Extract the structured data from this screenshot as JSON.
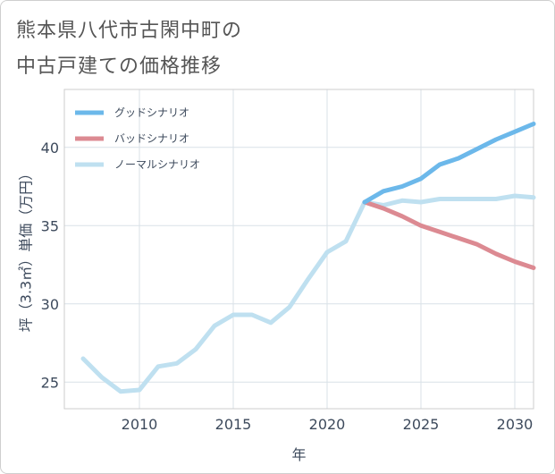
{
  "chart_data": {
    "type": "line",
    "title_lines": [
      "熊本県八代市古閑中町の",
      "中古戸建ての価格推移"
    ],
    "xlabel": "年",
    "ylabel": "坪（3.3㎡）単価（万円）",
    "xlim": [
      2006,
      2031
    ],
    "ylim": [
      23.3,
      43.7
    ],
    "x_ticks": [
      2010,
      2015,
      2020,
      2025,
      2030
    ],
    "y_ticks": [
      25,
      30,
      35,
      40
    ],
    "grid": true,
    "legend_position": "top-left",
    "series": [
      {
        "name": "グッドシナリオ",
        "color": "#6cb8ea",
        "x": [
          2022,
          2023,
          2024,
          2025,
          2026,
          2027,
          2028,
          2029,
          2030,
          2031
        ],
        "y": [
          36.5,
          37.2,
          37.5,
          38.0,
          38.9,
          39.3,
          39.9,
          40.5,
          41.0,
          41.5
        ]
      },
      {
        "name": "バッドシナリオ",
        "color": "#dc8a92",
        "x": [
          2022,
          2023,
          2024,
          2025,
          2026,
          2027,
          2028,
          2029,
          2030,
          2031
        ],
        "y": [
          36.5,
          36.1,
          35.6,
          35.0,
          34.6,
          34.2,
          33.8,
          33.2,
          32.7,
          32.3
        ]
      },
      {
        "name": "ノーマルシナリオ",
        "color": "#bfe0f0",
        "x": [
          2007,
          2008,
          2009,
          2010,
          2011,
          2012,
          2013,
          2014,
          2015,
          2016,
          2017,
          2018,
          2019,
          2020,
          2021,
          2022,
          2023,
          2024,
          2025,
          2026,
          2027,
          2028,
          2029,
          2030,
          2031
        ],
        "y": [
          26.5,
          25.3,
          24.4,
          24.5,
          26.0,
          26.2,
          27.1,
          28.6,
          29.3,
          29.3,
          28.8,
          29.8,
          31.6,
          33.3,
          34.0,
          36.5,
          36.3,
          36.6,
          36.5,
          36.7,
          36.7,
          36.7,
          36.7,
          36.9,
          36.8
        ]
      }
    ]
  }
}
